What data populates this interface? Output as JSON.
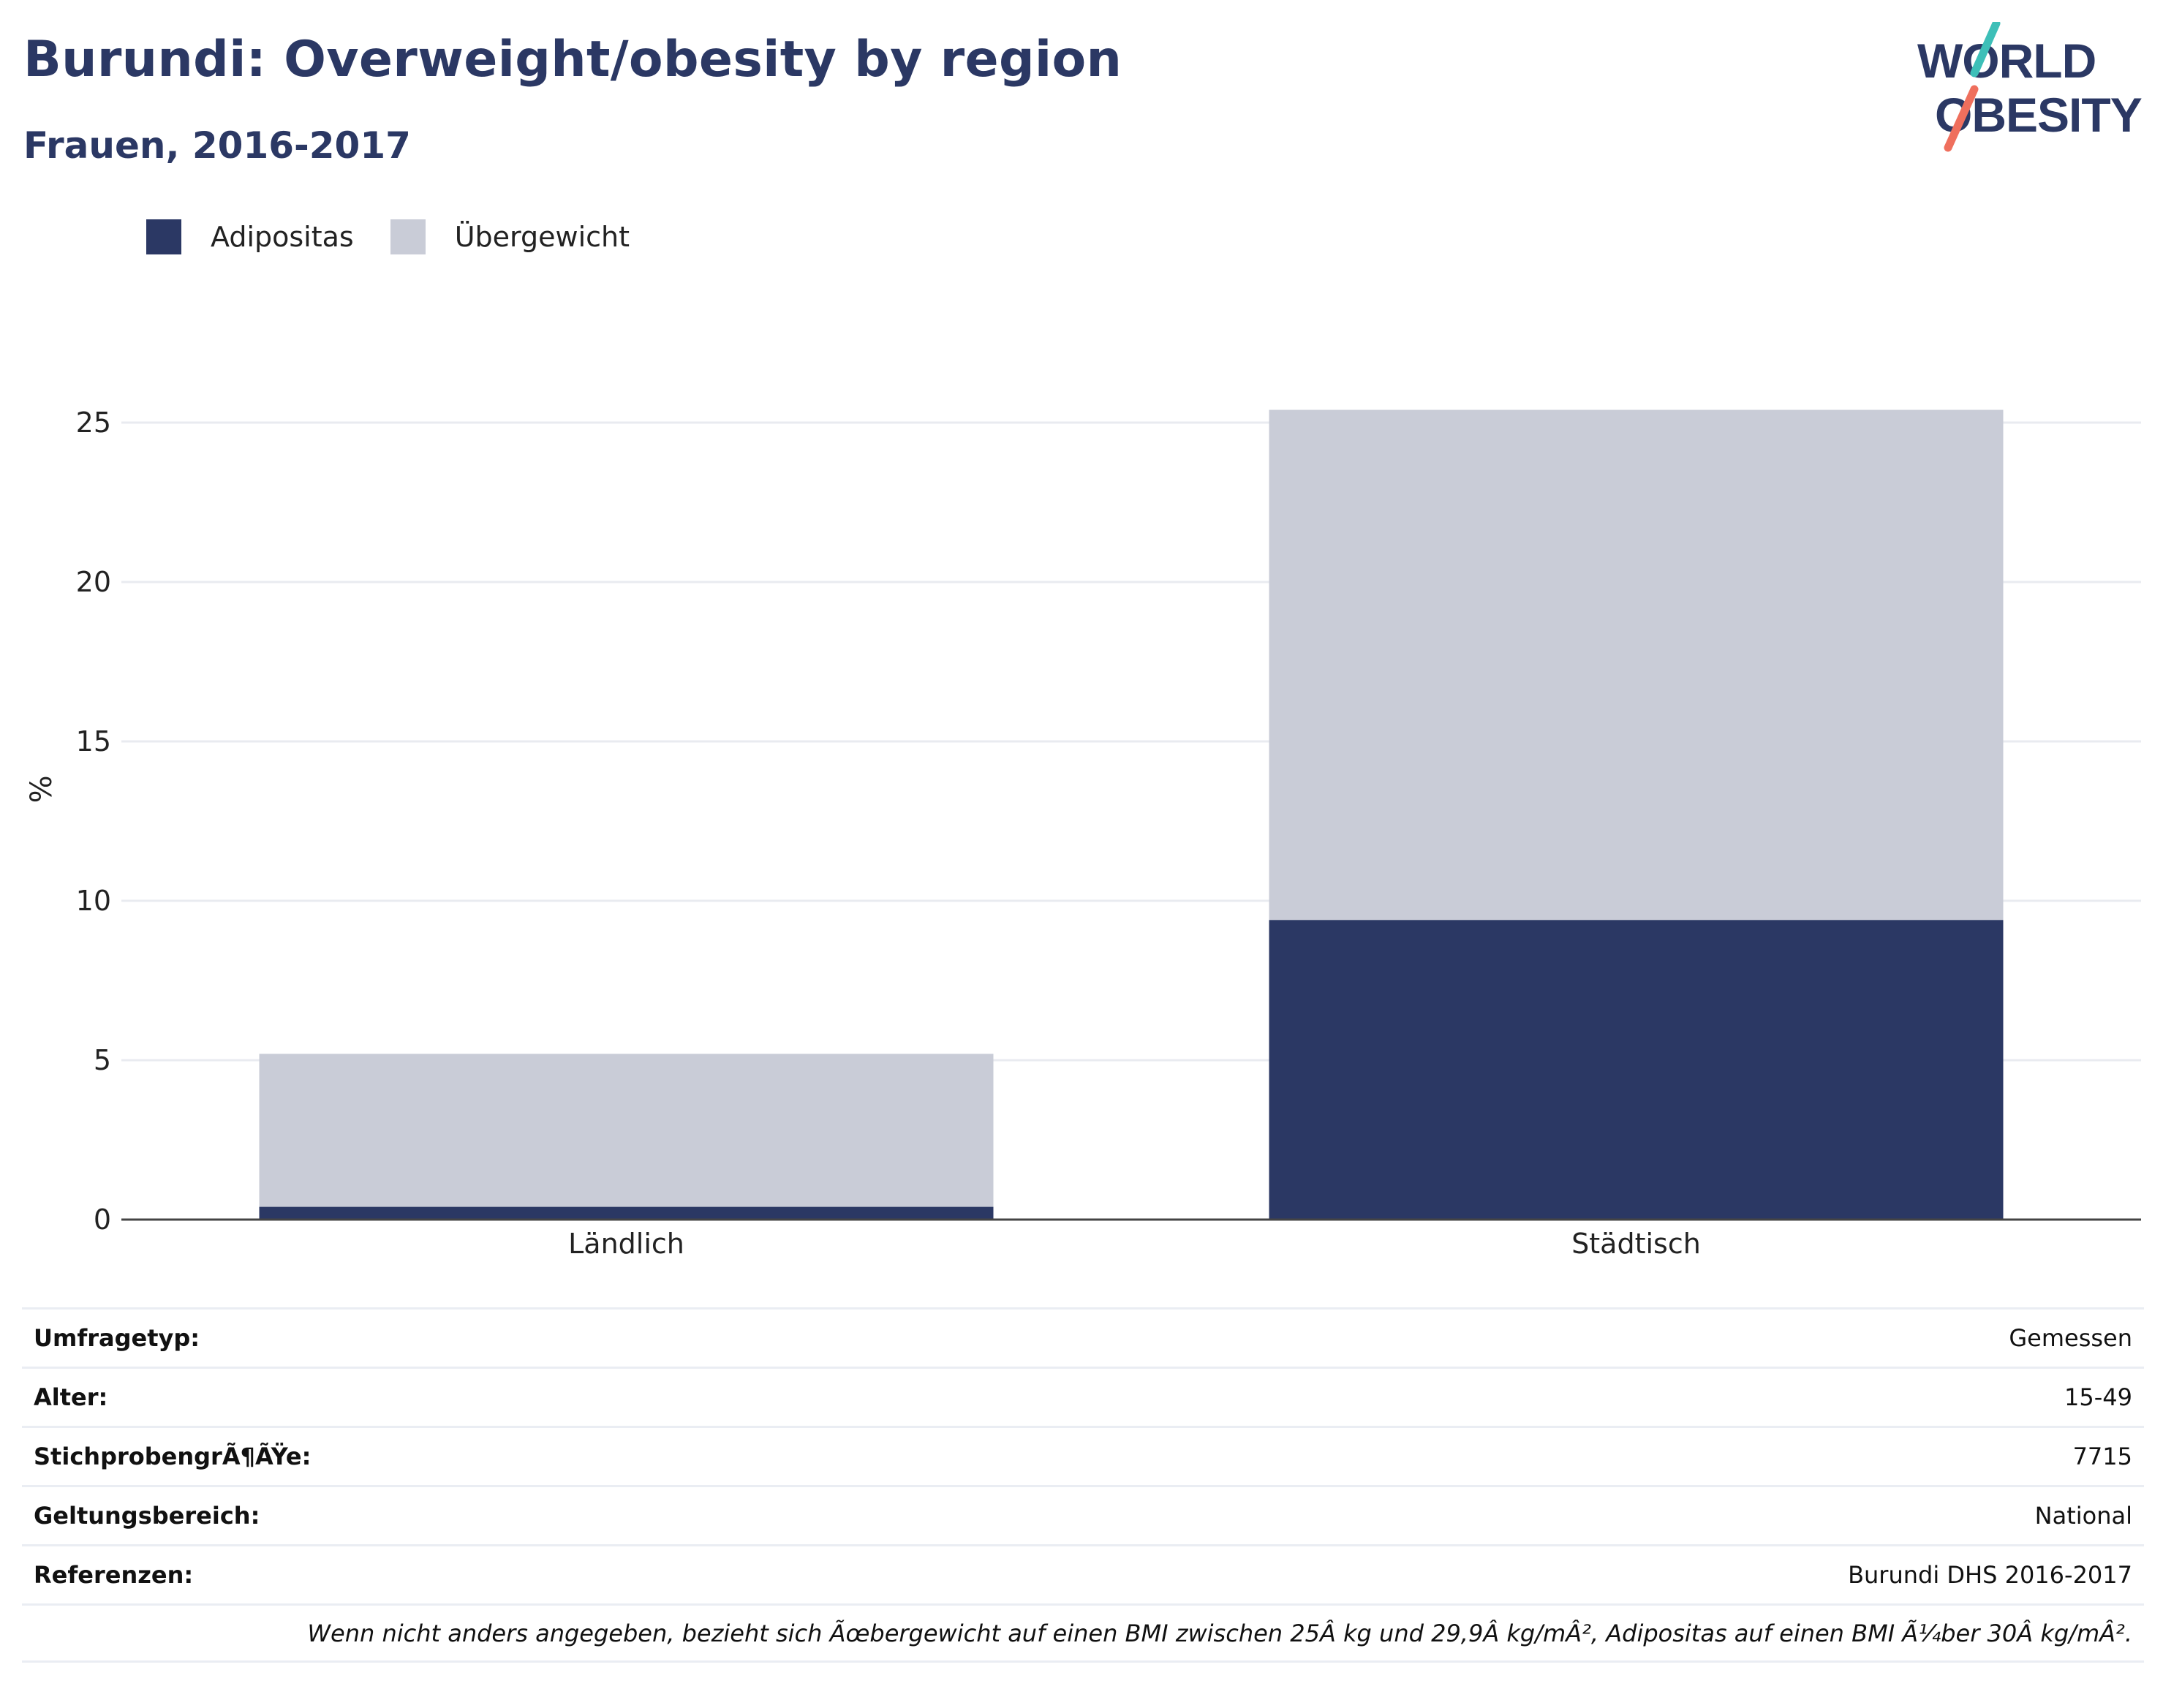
{
  "header": {
    "title": "Burundi: Overweight/obesity by region",
    "subtitle": "Frauen, 2016-2017"
  },
  "logo": {
    "line1": "WORLD",
    "line2": "OBESITY"
  },
  "legend": [
    {
      "label": "Adipositas",
      "color": "#2b3864"
    },
    {
      "label": "Übergewicht",
      "color": "#c9ccd7"
    }
  ],
  "chart_data": {
    "type": "bar",
    "stacked": true,
    "categories": [
      "Ländlich",
      "Städtisch"
    ],
    "series": [
      {
        "name": "Adipositas",
        "color": "#2b3864",
        "values": [
          0.4,
          9.4
        ]
      },
      {
        "name": "Übergewicht",
        "color": "#c9ccd7",
        "values": [
          4.8,
          16.0
        ]
      }
    ],
    "ylabel": "%",
    "yticks": [
      0,
      5,
      10,
      15,
      20,
      25
    ],
    "ylim": [
      0,
      27
    ],
    "grid": true,
    "legend_position": "top-left"
  },
  "meta": {
    "rows": [
      {
        "key": "Umfragetyp:",
        "value": "Gemessen"
      },
      {
        "key": "Alter:",
        "value": "15-49"
      },
      {
        "key": "StichprobengrÃ¶ÃŸe:",
        "value": "7715"
      },
      {
        "key": "Geltungsbereich:",
        "value": "National"
      },
      {
        "key": "Referenzen:",
        "value": "Burundi DHS 2016-2017"
      }
    ],
    "note": "Wenn nicht anders angegeben, bezieht sich Ãœbergewicht auf einen BMI zwischen 25Â kg und 29,9Â kg/mÂ², Adipositas auf einen BMI Ã¼ber 30Â kg/mÂ²."
  }
}
